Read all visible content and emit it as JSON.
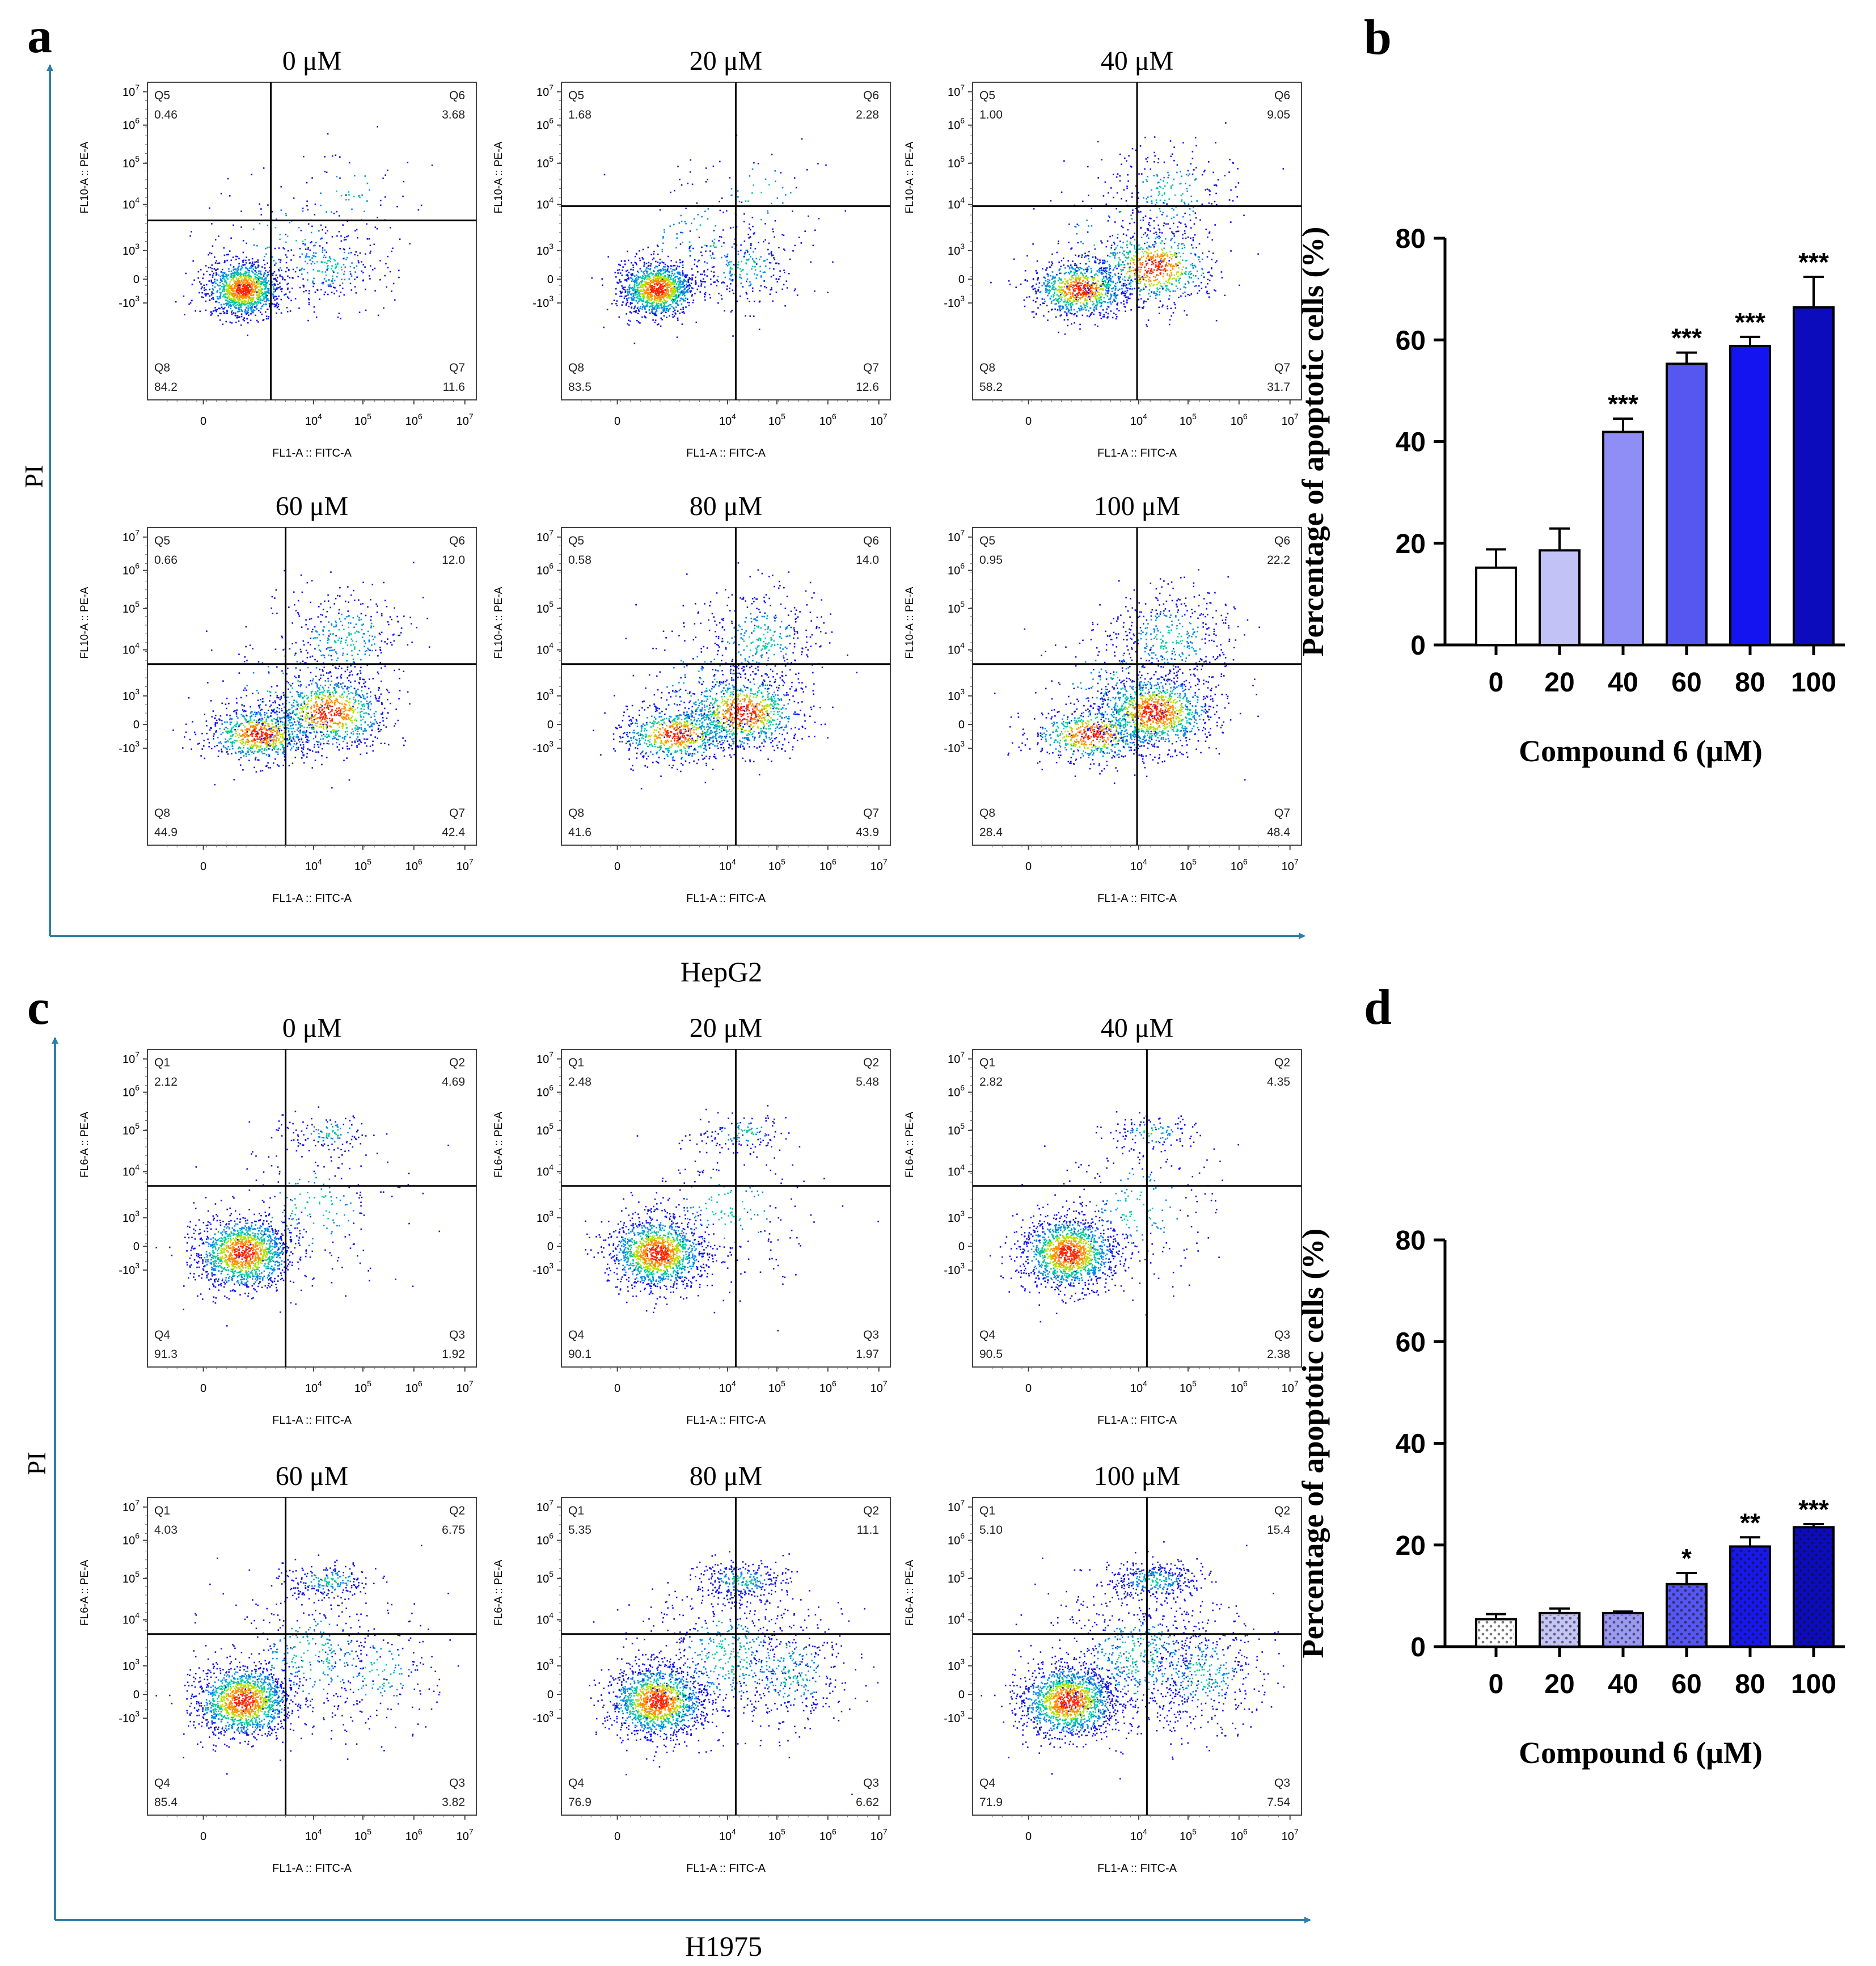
{
  "panels": {
    "a": {
      "letter": "a",
      "cell_line": "HepG2",
      "axis_y": "PI"
    },
    "b": {
      "letter": "b"
    },
    "c": {
      "letter": "c",
      "cell_line": "H1975",
      "axis_y": "PI"
    },
    "d": {
      "letter": "d"
    }
  },
  "flow_a": {
    "plots": [
      {
        "title": "0 μM",
        "ylabel": "FL10-A :: PE-A",
        "xlabel": "FL1-A :: FITC-A",
        "q_ul": "Q5",
        "v_ul": "0.46",
        "q_ur": "Q6",
        "v_ur": "3.68",
        "q_ll": "Q8",
        "v_ll": "84.2",
        "q_lr": "Q7",
        "v_lr": "11.6"
      },
      {
        "title": "20 μM",
        "ylabel": "FL10-A :: PE-A",
        "xlabel": "FL1-A :: FITC-A",
        "q_ul": "Q5",
        "v_ul": "1.68",
        "q_ur": "Q6",
        "v_ur": "2.28",
        "q_ll": "Q8",
        "v_ll": "83.5",
        "q_lr": "Q7",
        "v_lr": "12.6"
      },
      {
        "title": "40 μM",
        "ylabel": "FL10-A :: PE-A",
        "xlabel": "FL1-A :: FITC-A",
        "q_ul": "Q5",
        "v_ul": "1.00",
        "q_ur": "Q6",
        "v_ur": "9.05",
        "q_ll": "Q8",
        "v_ll": "58.2",
        "q_lr": "Q7",
        "v_lr": "31.7"
      },
      {
        "title": "60 μM",
        "ylabel": "FL10-A :: PE-A",
        "xlabel": "FL1-A :: FITC-A",
        "q_ul": "Q5",
        "v_ul": "0.66",
        "q_ur": "Q6",
        "v_ur": "12.0",
        "q_ll": "Q8",
        "v_ll": "44.9",
        "q_lr": "Q7",
        "v_lr": "42.4"
      },
      {
        "title": "80 μM",
        "ylabel": "FL10-A :: PE-A",
        "xlabel": "FL1-A :: FITC-A",
        "q_ul": "Q5",
        "v_ul": "0.58",
        "q_ur": "Q6",
        "v_ur": "14.0",
        "q_ll": "Q8",
        "v_ll": "41.6",
        "q_lr": "Q7",
        "v_lr": "43.9"
      },
      {
        "title": "100 μM",
        "ylabel": "FL10-A :: PE-A",
        "xlabel": "FL1-A :: FITC-A",
        "q_ul": "Q5",
        "v_ul": "0.95",
        "q_ur": "Q6",
        "v_ur": "22.2",
        "q_ll": "Q8",
        "v_ll": "28.4",
        "q_lr": "Q7",
        "v_lr": "48.4"
      }
    ]
  },
  "flow_c": {
    "plots": [
      {
        "title": "0 μM",
        "ylabel": "FL6-A :: PE-A",
        "xlabel": "FL1-A :: FITC-A",
        "q_ul": "Q1",
        "v_ul": "2.12",
        "q_ur": "Q2",
        "v_ur": "4.69",
        "q_ll": "Q4",
        "v_ll": "91.3",
        "q_lr": "Q3",
        "v_lr": "1.92"
      },
      {
        "title": "20 μM",
        "ylabel": "FL6-A :: PE-A",
        "xlabel": "FL1-A :: FITC-A",
        "q_ul": "Q1",
        "v_ul": "2.48",
        "q_ur": "Q2",
        "v_ur": "5.48",
        "q_ll": "Q4",
        "v_ll": "90.1",
        "q_lr": "Q3",
        "v_lr": "1.97"
      },
      {
        "title": "40 μM",
        "ylabel": "FL6-A :: PE-A",
        "xlabel": "FL1-A :: FITC-A",
        "q_ul": "Q1",
        "v_ul": "2.82",
        "q_ur": "Q2",
        "v_ur": "4.35",
        "q_ll": "Q4",
        "v_ll": "90.5",
        "q_lr": "Q3",
        "v_lr": "2.38"
      },
      {
        "title": "60 μM",
        "ylabel": "FL6-A :: PE-A",
        "xlabel": "FL1-A :: FITC-A",
        "q_ul": "Q1",
        "v_ul": "4.03",
        "q_ur": "Q2",
        "v_ur": "6.75",
        "q_ll": "Q4",
        "v_ll": "85.4",
        "q_lr": "Q3",
        "v_lr": "3.82"
      },
      {
        "title": "80 μM",
        "ylabel": "FL6-A :: PE-A",
        "xlabel": "FL1-A :: FITC-A",
        "q_ul": "Q1",
        "v_ul": "5.35",
        "q_ur": "Q2",
        "v_ur": "11.1",
        "q_ll": "Q4",
        "v_ll": "76.9",
        "q_lr": "Q3",
        "v_lr": "6.62"
      },
      {
        "title": "100 μM",
        "ylabel": "FL6-A :: PE-A",
        "xlabel": "FL1-A :: FITC-A",
        "q_ul": "Q1",
        "v_ul": "5.10",
        "q_ur": "Q2",
        "v_ur": "15.4",
        "q_ll": "Q4",
        "v_ll": "71.9",
        "q_lr": "Q3",
        "v_lr": "7.54"
      }
    ]
  },
  "flow_axes": {
    "y_ticks": [
      {
        "b": "10",
        "e": "7"
      },
      {
        "b": "10",
        "e": "6"
      },
      {
        "b": "10",
        "e": "5"
      },
      {
        "b": "10",
        "e": "4"
      },
      {
        "b": "10",
        "e": "3"
      },
      {
        "b": "0",
        "e": ""
      },
      {
        "b": "-10",
        "e": "3"
      }
    ],
    "x_ticks": [
      {
        "b": "0",
        "e": ""
      },
      {
        "b": "10",
        "e": "4"
      },
      {
        "b": "10",
        "e": "5"
      },
      {
        "b": "10",
        "e": "6"
      },
      {
        "b": "10",
        "e": "7"
      }
    ]
  },
  "colors": {
    "axis_arrow": "#2e7fa8",
    "a_bars": [
      "#ffffff",
      "#c2c2f7",
      "#8e8ef6",
      "#5656f0",
      "#1414f0",
      "#0c0cbc"
    ],
    "d_bars": [
      "#ffffff",
      "#c4c4f6",
      "#9a9af2",
      "#5656f0",
      "#1818e8",
      "#0c0cbc"
    ],
    "scatter": [
      "#1010ee",
      "#0088e8",
      "#00c8a0",
      "#b4e000",
      "#ff8c00",
      "#ff2200"
    ]
  },
  "chart_data": [
    {
      "id": "b",
      "type": "bar",
      "title": "",
      "categories": [
        "0",
        "20",
        "40",
        "60",
        "80",
        "100"
      ],
      "values": [
        15.2,
        18.6,
        41.9,
        55.3,
        58.8,
        66.4
      ],
      "errors": [
        3.6,
        4.3,
        2.6,
        2.2,
        1.8,
        6.0
      ],
      "significance": [
        "",
        "",
        "***",
        "***",
        "***",
        "***"
      ],
      "xlabel": "Compound 6 (μM)",
      "ylabel": "Percentage of apoptotic cells (%)",
      "ylim": [
        0,
        80
      ],
      "yticks": [
        0,
        20,
        40,
        60,
        80
      ],
      "grid": false
    },
    {
      "id": "d",
      "type": "bar",
      "title": "",
      "categories": [
        "0",
        "20",
        "40",
        "60",
        "80",
        "100"
      ],
      "values": [
        5.4,
        6.6,
        6.6,
        12.3,
        19.7,
        23.5
      ],
      "errors": [
        1.0,
        0.9,
        0.3,
        2.2,
        1.8,
        0.6
      ],
      "significance": [
        "",
        "",
        "",
        "*",
        "**",
        "***"
      ],
      "xlabel": "Compound 6 (μM)",
      "ylabel": "Percentage of apoptotic cells (%)",
      "ylim": [
        0,
        80
      ],
      "yticks": [
        0,
        20,
        40,
        60,
        80
      ],
      "grid": false
    }
  ]
}
